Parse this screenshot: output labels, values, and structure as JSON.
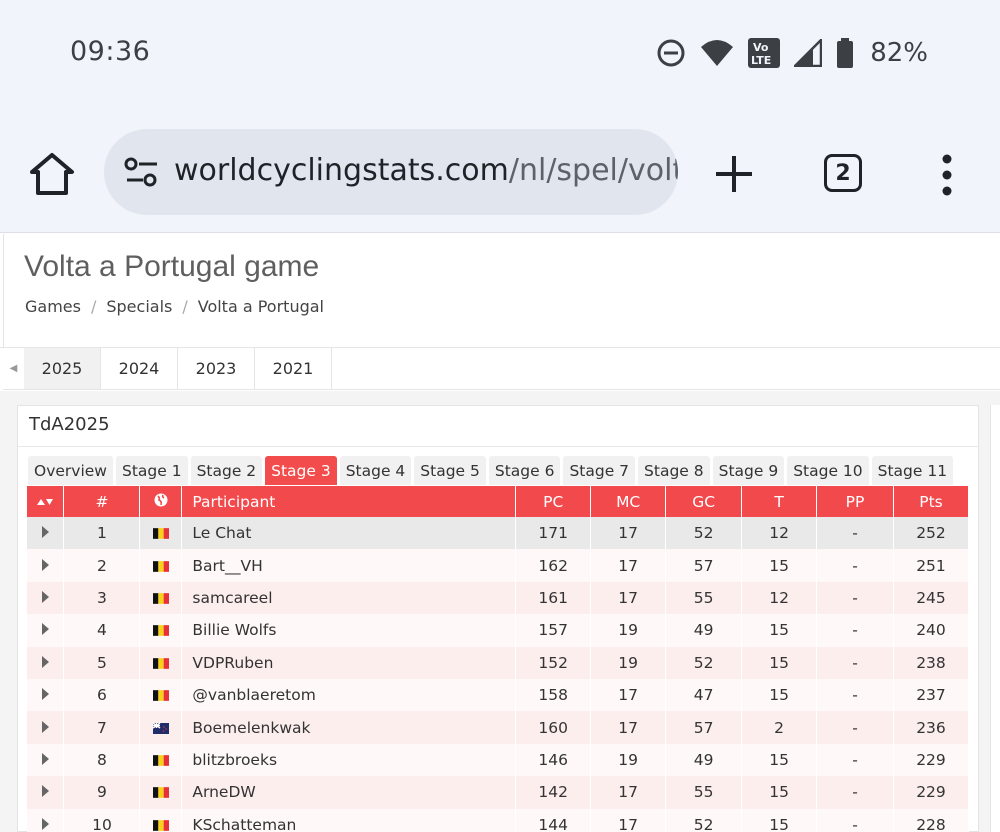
{
  "status_bar": {
    "time": "09:36",
    "battery_pct": "82%"
  },
  "browser": {
    "url_domain": "worldcyclingstats.com",
    "url_path": "/nl/spel/volta-",
    "tab_count": "2"
  },
  "page": {
    "title": "Volta a Portugal game",
    "breadcrumb": [
      "Games",
      "Specials",
      "Volta a Portugal"
    ],
    "year_tabs": [
      "2025",
      "2024",
      "2023",
      "2021"
    ],
    "active_year": "2025"
  },
  "card": {
    "title": "TdA2025",
    "stage_tabs": [
      "Overview",
      "Stage 1",
      "Stage 2",
      "Stage 3",
      "Stage 4",
      "Stage 5",
      "Stage 6",
      "Stage 7",
      "Stage 8",
      "Stage 9",
      "Stage 10",
      "Stage 11"
    ],
    "active_stage": "Stage 3"
  },
  "table": {
    "columns": [
      "#",
      "Participant",
      "PC",
      "MC",
      "GC",
      "T",
      "PP",
      "Pts"
    ],
    "accent_color": "#f2494d",
    "rows": [
      {
        "rank": "1",
        "flag": "belgium",
        "participant": "Le Chat",
        "pc": "171",
        "mc": "17",
        "gc": "52",
        "t": "12",
        "pp": "-",
        "pts": "252"
      },
      {
        "rank": "2",
        "flag": "belgium",
        "participant": "Bart__VH",
        "pc": "162",
        "mc": "17",
        "gc": "57",
        "t": "15",
        "pp": "-",
        "pts": "251"
      },
      {
        "rank": "3",
        "flag": "belgium",
        "participant": "samcareel",
        "pc": "161",
        "mc": "17",
        "gc": "55",
        "t": "12",
        "pp": "-",
        "pts": "245"
      },
      {
        "rank": "4",
        "flag": "belgium",
        "participant": "Billie Wolfs",
        "pc": "157",
        "mc": "19",
        "gc": "49",
        "t": "15",
        "pp": "-",
        "pts": "240"
      },
      {
        "rank": "5",
        "flag": "belgium",
        "participant": "VDPRuben",
        "pc": "152",
        "mc": "19",
        "gc": "52",
        "t": "15",
        "pp": "-",
        "pts": "238"
      },
      {
        "rank": "6",
        "flag": "belgium",
        "participant": "@vanblaeretom",
        "pc": "158",
        "mc": "17",
        "gc": "47",
        "t": "15",
        "pp": "-",
        "pts": "237"
      },
      {
        "rank": "7",
        "flag": "new-zealand",
        "participant": "Boemelenkwak",
        "pc": "160",
        "mc": "17",
        "gc": "57",
        "t": "2",
        "pp": "-",
        "pts": "236"
      },
      {
        "rank": "8",
        "flag": "belgium",
        "participant": "blitzbroeks",
        "pc": "146",
        "mc": "19",
        "gc": "49",
        "t": "15",
        "pp": "-",
        "pts": "229"
      },
      {
        "rank": "9",
        "flag": "belgium",
        "participant": "ArneDW",
        "pc": "142",
        "mc": "17",
        "gc": "55",
        "t": "15",
        "pp": "-",
        "pts": "229"
      },
      {
        "rank": "10",
        "flag": "belgium",
        "participant": "KSchatteman",
        "pc": "144",
        "mc": "17",
        "gc": "52",
        "t": "15",
        "pp": "-",
        "pts": "228"
      }
    ]
  }
}
